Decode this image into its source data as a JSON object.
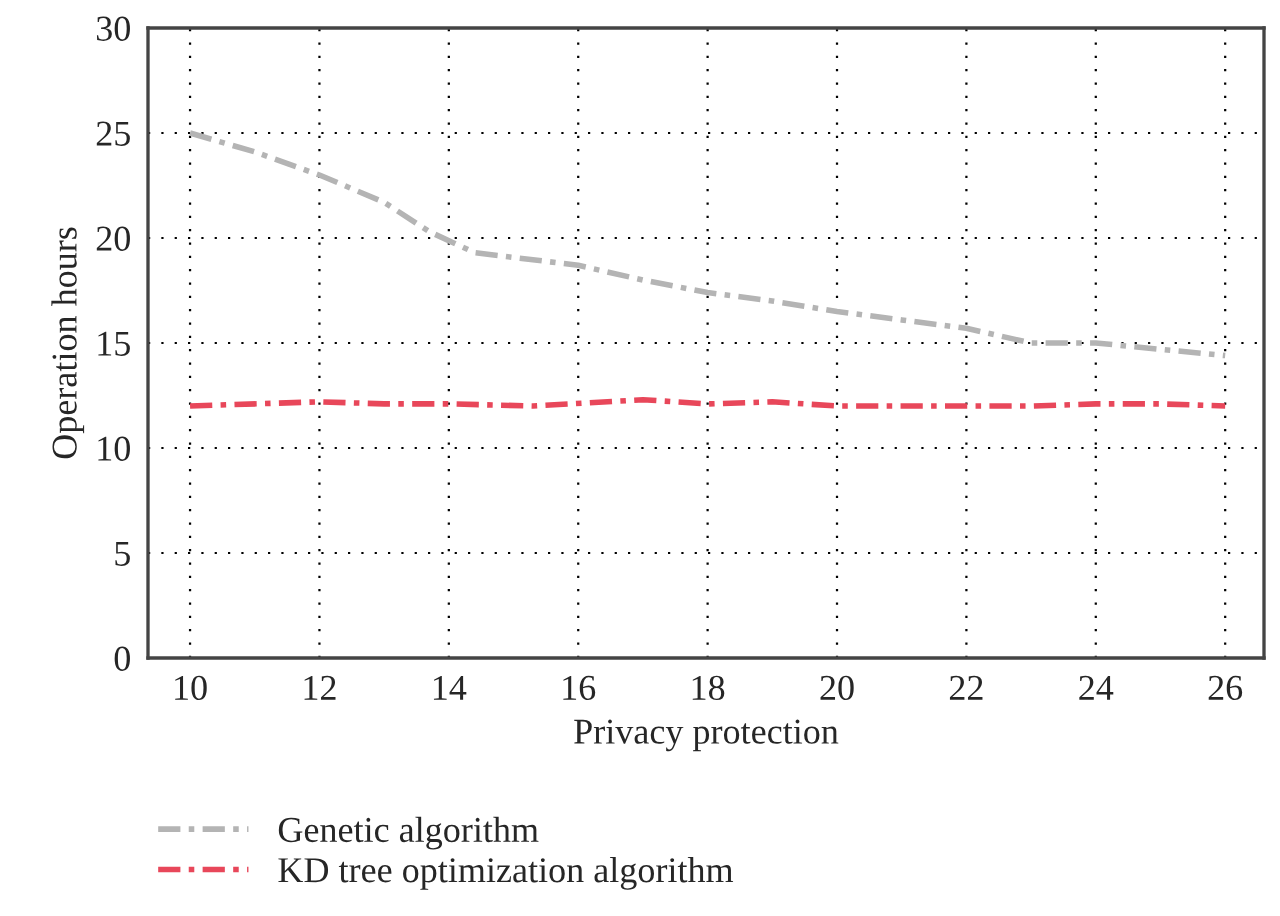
{
  "chart_data": {
    "type": "line",
    "xlabel": "Privacy protection",
    "ylabel": "Operation hours",
    "xlim": [
      9.35,
      26.6
    ],
    "xticks": [
      10,
      12,
      14,
      16,
      18,
      20,
      22,
      24,
      26
    ],
    "ylim": [
      0,
      30
    ],
    "yticks": [
      0,
      5,
      10,
      15,
      20,
      25,
      30
    ],
    "grid": true,
    "legend": "bottom",
    "marker": "none",
    "line_style": "dashdot",
    "series": [
      {
        "name": "Genetic algorithm",
        "color": "#b4b4b4",
        "x": [
          10,
          11,
          12,
          13,
          13.7,
          14.4,
          16,
          17,
          18,
          19,
          20,
          21,
          22,
          23,
          24,
          25,
          26
        ],
        "values": [
          25,
          24.1,
          23,
          21.7,
          20.3,
          19.3,
          18.7,
          18,
          17.4,
          17.0,
          16.5,
          16.1,
          15.7,
          15.0,
          15.0,
          14.7,
          14.4
        ]
      },
      {
        "name": "KD tree optimization algorithm",
        "color": "#e8475a",
        "x": [
          10,
          12,
          13,
          14,
          15.3,
          17,
          18,
          19,
          20,
          21,
          22,
          23,
          24,
          25,
          26
        ],
        "values": [
          12.0,
          12.2,
          12.1,
          12.1,
          12.0,
          12.3,
          12.1,
          12.2,
          12.0,
          12.0,
          12.0,
          12.0,
          12.1,
          12.1,
          12.0
        ]
      }
    ]
  }
}
